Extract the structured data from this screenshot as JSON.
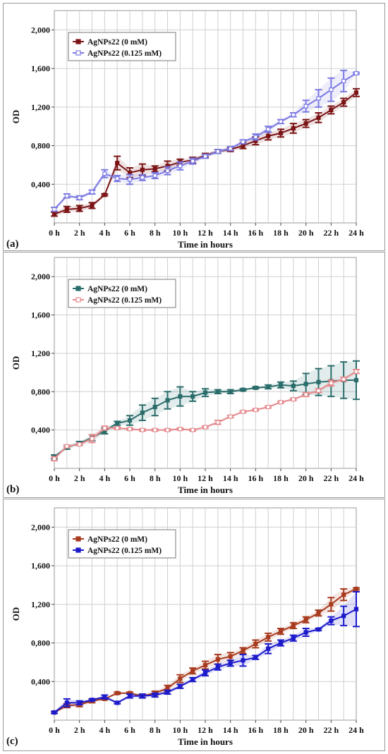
{
  "chart_data": [
    {
      "type": "line",
      "panel_label": "(a)",
      "xlabel": "Time in hours",
      "ylabel": "OD",
      "categories": [
        "0 h",
        "2 h",
        "4 h",
        "6 h",
        "8 h",
        "10 h",
        "12 h",
        "14 h",
        "16 h",
        "18 h",
        "20 h",
        "22 h",
        "24 h"
      ],
      "x": [
        0,
        1,
        2,
        3,
        4,
        5,
        6,
        7,
        8,
        9,
        10,
        11,
        12,
        13,
        14,
        15,
        16,
        17,
        18,
        19,
        20,
        21,
        22,
        23,
        24
      ],
      "ylim": [
        0,
        2.2
      ],
      "yticks": [
        0.4,
        0.8,
        1.2,
        1.6,
        2.0
      ],
      "yticklabels": [
        "0,400",
        "0,800",
        "1,200",
        "1,600",
        "2,000"
      ],
      "grid": true,
      "legend": "top-left",
      "series": [
        {
          "name": "AgNPs22 (0 mM)",
          "color": "#7b1416",
          "marker": "square-filled",
          "values": [
            0.09,
            0.14,
            0.15,
            0.18,
            0.29,
            0.62,
            0.52,
            0.55,
            0.56,
            0.59,
            0.63,
            0.65,
            0.7,
            0.74,
            0.76,
            0.8,
            0.85,
            0.9,
            0.93,
            0.98,
            1.03,
            1.09,
            1.17,
            1.25,
            1.35
          ],
          "errors": [
            0.02,
            0.03,
            0.03,
            0.03,
            0.01,
            0.07,
            0.05,
            0.06,
            0.03,
            0.05,
            0.03,
            0.03,
            0.02,
            0.02,
            0.02,
            0.03,
            0.04,
            0.04,
            0.04,
            0.05,
            0.04,
            0.05,
            0.04,
            0.04,
            0.04
          ]
        },
        {
          "name": "AgNPs22 (0.125 mM)",
          "color": "#7a78e2",
          "marker": "square-open",
          "values": [
            0.14,
            0.28,
            0.26,
            0.32,
            0.51,
            0.46,
            0.45,
            0.47,
            0.49,
            0.54,
            0.59,
            0.64,
            0.69,
            0.74,
            0.77,
            0.84,
            0.89,
            0.97,
            1.05,
            1.12,
            1.21,
            1.29,
            1.38,
            1.47,
            1.55
          ],
          "errors": [
            0.02,
            0.02,
            0.02,
            0.02,
            0.04,
            0.03,
            0.05,
            0.03,
            0.03,
            0.04,
            0.04,
            0.03,
            0.02,
            0.02,
            0.02,
            0.02,
            0.03,
            0.03,
            0.02,
            0.02,
            0.06,
            0.09,
            0.12,
            0.11,
            0.01
          ]
        }
      ]
    },
    {
      "type": "line",
      "panel_label": "(b)",
      "xlabel": "Time in hours",
      "ylabel": "OD",
      "categories": [
        "0 h",
        "2 h",
        "4 h",
        "6 h",
        "8 h",
        "10 h",
        "12 h",
        "14 h",
        "16 h",
        "18 h",
        "20 h",
        "22 h",
        "24 h"
      ],
      "x": [
        0,
        1,
        2,
        3,
        4,
        5,
        6,
        7,
        8,
        9,
        10,
        11,
        12,
        13,
        14,
        15,
        16,
        17,
        18,
        19,
        20,
        21,
        22,
        23,
        24
      ],
      "ylim": [
        0,
        2.2
      ],
      "yticks": [
        0.4,
        0.8,
        1.2,
        1.6,
        2.0
      ],
      "yticklabels": [
        "0,400",
        "0,800",
        "1,200",
        "1,600",
        "2,000"
      ],
      "grid": true,
      "legend": "top-left",
      "series": [
        {
          "name": "AgNPs22 (0 mM)",
          "color": "#2a6d6b",
          "marker": "square-filled",
          "values": [
            0.12,
            0.22,
            0.26,
            0.32,
            0.39,
            0.47,
            0.5,
            0.58,
            0.64,
            0.71,
            0.75,
            0.75,
            0.79,
            0.8,
            0.8,
            0.82,
            0.84,
            0.85,
            0.87,
            0.86,
            0.88,
            0.9,
            0.91,
            0.92,
            0.92
          ],
          "errors": [
            0.02,
            0.02,
            0.02,
            0.03,
            0.03,
            0.02,
            0.05,
            0.08,
            0.09,
            0.09,
            0.1,
            0.05,
            0.04,
            0.02,
            0.02,
            0.01,
            0.01,
            0.02,
            0.03,
            0.05,
            0.11,
            0.14,
            0.16,
            0.19,
            0.2
          ]
        },
        {
          "name": "AgNPs22 (0.125 mM)",
          "color": "#e58a8e",
          "marker": "square-open",
          "values": [
            0.1,
            0.23,
            0.25,
            0.31,
            0.42,
            0.42,
            0.41,
            0.4,
            0.4,
            0.4,
            0.41,
            0.4,
            0.43,
            0.48,
            0.54,
            0.59,
            0.61,
            0.64,
            0.69,
            0.72,
            0.77,
            0.81,
            0.89,
            0.93,
            1.01
          ],
          "errors": [
            0.02,
            0.01,
            0.01,
            0.04,
            0.02,
            0.01,
            0.01,
            0.01,
            0.01,
            0.01,
            0.01,
            0.01,
            0.01,
            0.02,
            0.01,
            0.01,
            0.01,
            0.01,
            0.01,
            0.01,
            0.02,
            0.02,
            0.03,
            0.02,
            0.02
          ]
        }
      ]
    },
    {
      "type": "line",
      "panel_label": "(c)",
      "xlabel": "Time in hours",
      "ylabel": "OD",
      "categories": [
        "0 h",
        "2 h",
        "4 h",
        "6 h",
        "8 h",
        "10 h",
        "12 h",
        "14 h",
        "16 h",
        "18 h",
        "20 h",
        "22 h",
        "24 h"
      ],
      "x": [
        0,
        1,
        2,
        3,
        4,
        5,
        6,
        7,
        8,
        9,
        10,
        11,
        12,
        13,
        14,
        15,
        16,
        17,
        18,
        19,
        20,
        21,
        22,
        23,
        24
      ],
      "ylim": [
        0,
        2.2
      ],
      "yticks": [
        0.4,
        0.8,
        1.2,
        1.6,
        2.0
      ],
      "yticklabels": [
        "0,400",
        "0,800",
        "1,200",
        "1,600",
        "2,000"
      ],
      "grid": true,
      "legend": "top-left",
      "series": [
        {
          "name": "AgNPs22 (0 mM)",
          "color": "#a83a1e",
          "marker": "square-filled",
          "values": [
            0.08,
            0.15,
            0.16,
            0.2,
            0.22,
            0.28,
            0.28,
            0.25,
            0.28,
            0.33,
            0.43,
            0.51,
            0.57,
            0.63,
            0.66,
            0.72,
            0.79,
            0.86,
            0.92,
            0.98,
            1.04,
            1.11,
            1.2,
            1.3,
            1.36
          ],
          "errors": [
            0.01,
            0.02,
            0.02,
            0.02,
            0.01,
            0.01,
            0.01,
            0.02,
            0.02,
            0.03,
            0.04,
            0.03,
            0.04,
            0.05,
            0.04,
            0.03,
            0.04,
            0.04,
            0.03,
            0.03,
            0.03,
            0.03,
            0.07,
            0.06,
            0.01
          ]
        },
        {
          "name": "AgNPs22 (0.125 mM)",
          "color": "#1c1acb",
          "marker": "square-filled",
          "values": [
            0.08,
            0.18,
            0.18,
            0.21,
            0.24,
            0.18,
            0.25,
            0.25,
            0.26,
            0.29,
            0.35,
            0.42,
            0.49,
            0.55,
            0.59,
            0.62,
            0.65,
            0.74,
            0.8,
            0.85,
            0.91,
            0.94,
            1.03,
            1.08,
            1.15
          ],
          "errors": [
            0.01,
            0.04,
            0.02,
            0.01,
            0.02,
            0.01,
            0.02,
            0.02,
            0.02,
            0.02,
            0.02,
            0.02,
            0.03,
            0.03,
            0.03,
            0.06,
            0.02,
            0.05,
            0.03,
            0.03,
            0.04,
            0.01,
            0.04,
            0.1,
            0.18
          ]
        }
      ]
    }
  ]
}
